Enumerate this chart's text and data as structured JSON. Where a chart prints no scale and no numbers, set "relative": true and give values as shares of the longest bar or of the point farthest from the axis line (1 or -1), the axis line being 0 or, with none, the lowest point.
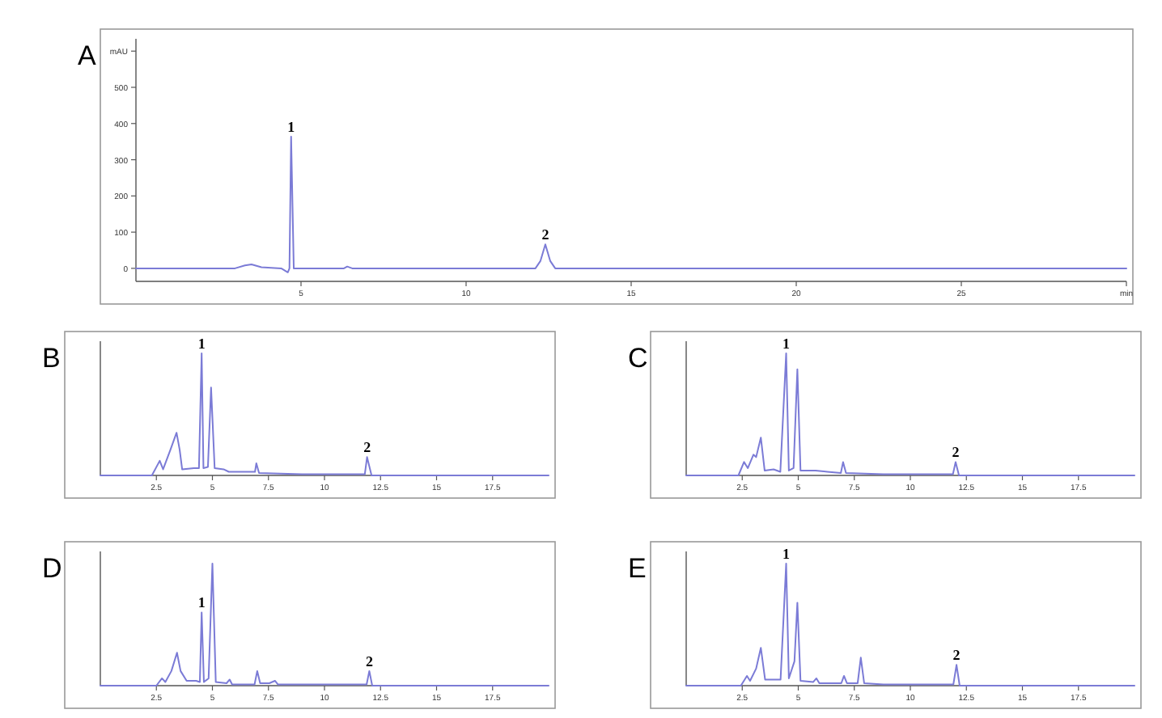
{
  "chart_data": [
    {
      "type": "line",
      "title": "A",
      "x": [
        0,
        3.0,
        3.3,
        3.5,
        3.8,
        4.4,
        4.6,
        4.65,
        4.7,
        4.78,
        5.0,
        6.3,
        6.4,
        6.55,
        12.1,
        12.25,
        12.4,
        12.55,
        12.7,
        30
      ],
      "values": [
        0,
        0,
        8,
        11,
        3,
        0,
        -11,
        0,
        364,
        0,
        0,
        0,
        5,
        0,
        0,
        20,
        66,
        20,
        0,
        0
      ],
      "color": "#7b7bd6",
      "xlim": [
        0,
        30
      ],
      "xticks": [
        5,
        10,
        15,
        20,
        25,
        {
          "value": 30,
          "label": "min"
        }
      ],
      "ylim": [
        -36,
        634
      ],
      "yticks": [
        0,
        100,
        200,
        300,
        400,
        500,
        {
          "value": 600,
          "label": "mAU"
        }
      ],
      "annotations": [
        {
          "text": "1",
          "x": 4.7,
          "y": 364
        },
        {
          "text": "2",
          "x": 12.4,
          "y": 66
        }
      ]
    },
    {
      "type": "line",
      "title": "B",
      "x": [
        0,
        2.3,
        2.65,
        2.8,
        3.125,
        3.4,
        3.54,
        3.65,
        4.17,
        4.4,
        4.52,
        4.6,
        4.8,
        4.94,
        5.1,
        5.5,
        5.73,
        6.9,
        6.96,
        7.08,
        9.0,
        11.8,
        11.9,
        12.1,
        20
      ],
      "values": [
        0,
        0,
        0.12,
        0.05,
        0.21,
        0.35,
        0.21,
        0.05,
        0.06,
        0.06,
        1.0,
        0.06,
        0.07,
        0.72,
        0.06,
        0.05,
        0.03,
        0.03,
        0.1,
        0.02,
        0.01,
        0.01,
        0.15,
        0,
        0
      ],
      "color": "#7b7bd6",
      "relative": true,
      "xlim": [
        0,
        20
      ],
      "xticks": [
        2.5,
        5,
        7.5,
        10,
        12.5,
        15,
        17.5
      ],
      "tick_labels": "x",
      "annotations": [
        {
          "text": "1",
          "x": 4.52,
          "y": 1.0
        },
        {
          "text": "2",
          "x": 11.9,
          "y": 0.15
        }
      ]
    },
    {
      "type": "line",
      "title": "C",
      "x": [
        0,
        2.33,
        2.58,
        2.75,
        3.0,
        3.12,
        3.33,
        3.5,
        3.9,
        4.2,
        4.46,
        4.58,
        4.79,
        4.96,
        5.1,
        5.77,
        6.3,
        6.9,
        7.0,
        7.13,
        8.8,
        11.9,
        12.02,
        12.17,
        20
      ],
      "values": [
        0,
        0,
        0.11,
        0.06,
        0.17,
        0.15,
        0.31,
        0.04,
        0.05,
        0.03,
        1.0,
        0.04,
        0.06,
        0.87,
        0.04,
        0.04,
        0.03,
        0.02,
        0.11,
        0.02,
        0.01,
        0.01,
        0.11,
        0,
        0
      ],
      "color": "#7b7bd6",
      "relative": true,
      "xlim": [
        0,
        20
      ],
      "xticks": [
        2.5,
        5,
        7.5,
        10,
        12.5,
        15,
        17.5
      ],
      "tick_labels": "x",
      "annotations": [
        {
          "text": "1",
          "x": 4.46,
          "y": 1.0
        },
        {
          "text": "2",
          "x": 12.02,
          "y": 0.11
        }
      ]
    },
    {
      "type": "line",
      "title": "D",
      "x": [
        0,
        2.5,
        2.75,
        2.9,
        3.17,
        3.42,
        3.58,
        3.85,
        4.27,
        4.44,
        4.52,
        4.62,
        4.83,
        5.0,
        5.15,
        5.63,
        5.77,
        5.88,
        6.88,
        7.0,
        7.13,
        7.54,
        7.79,
        7.92,
        11.88,
        12.0,
        12.13,
        20
      ],
      "values": [
        0,
        0,
        0.06,
        0.03,
        0.12,
        0.27,
        0.12,
        0.04,
        0.04,
        0.03,
        0.6,
        0.03,
        0.06,
        1.0,
        0.03,
        0.02,
        0.05,
        0.01,
        0.01,
        0.12,
        0.02,
        0.02,
        0.04,
        0.01,
        0.01,
        0.12,
        0,
        0
      ],
      "color": "#7b7bd6",
      "relative": true,
      "xlim": [
        0,
        20
      ],
      "xticks": [
        2.5,
        5,
        7.5,
        10,
        12.5,
        15,
        17.5
      ],
      "tick_labels": "x",
      "annotations": [
        {
          "text": "1",
          "x": 4.52,
          "y": 0.6
        },
        {
          "text": "2",
          "x": 12.0,
          "y": 0.12
        }
      ]
    },
    {
      "type": "line",
      "title": "E",
      "x": [
        0,
        2.44,
        2.71,
        2.85,
        3.12,
        3.33,
        3.52,
        3.9,
        4.21,
        4.46,
        4.58,
        4.83,
        4.96,
        5.1,
        5.67,
        5.81,
        5.94,
        6.92,
        7.04,
        7.17,
        7.65,
        7.79,
        7.94,
        8.8,
        11.92,
        12.06,
        12.2,
        20
      ],
      "values": [
        0,
        0,
        0.08,
        0.04,
        0.14,
        0.31,
        0.05,
        0.05,
        0.05,
        1.0,
        0.06,
        0.2,
        0.68,
        0.04,
        0.03,
        0.06,
        0.02,
        0.02,
        0.08,
        0.02,
        0.02,
        0.23,
        0.02,
        0.01,
        0.01,
        0.17,
        0,
        0
      ],
      "color": "#7b7bd6",
      "relative": true,
      "xlim": [
        0,
        20
      ],
      "xticks": [
        2.5,
        5,
        7.5,
        10,
        12.5,
        15,
        17.5
      ],
      "tick_labels": "x",
      "annotations": [
        {
          "text": "1",
          "x": 4.46,
          "y": 1.0
        },
        {
          "text": "2",
          "x": 12.06,
          "y": 0.17
        }
      ]
    }
  ]
}
